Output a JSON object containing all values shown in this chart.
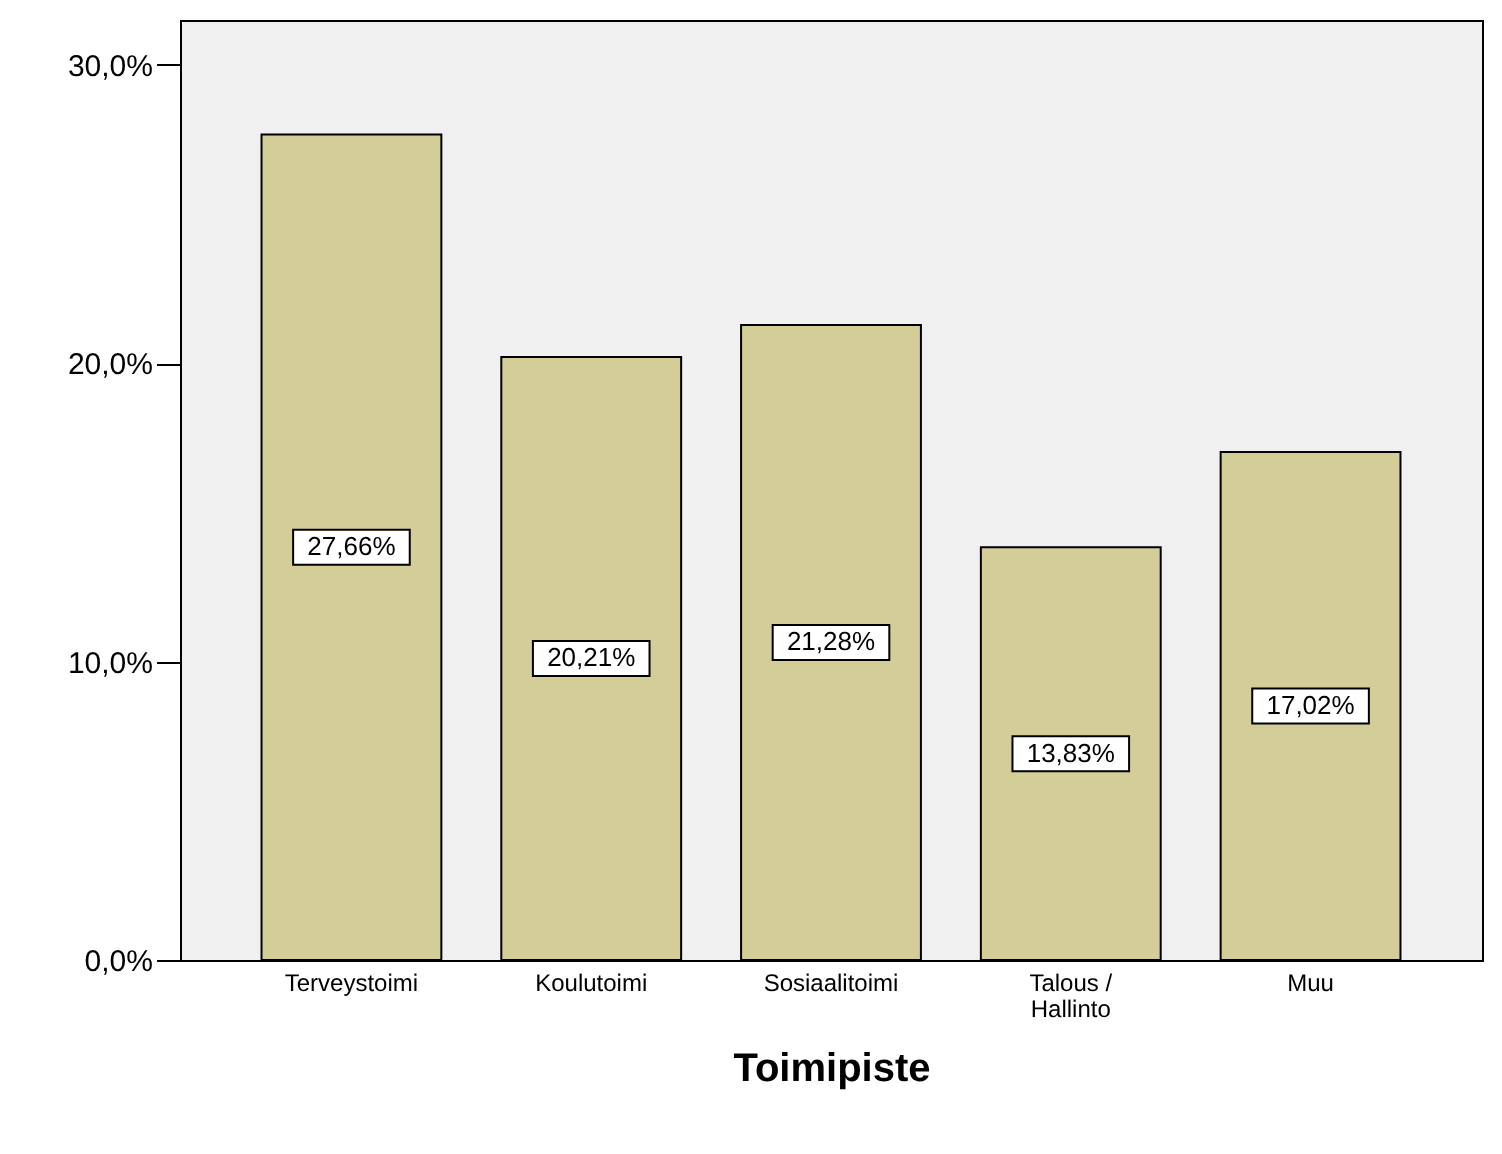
{
  "chart_data": {
    "type": "bar",
    "xlabel": "Toimipiste",
    "categories": [
      "Terveystoimi",
      "Koulutoimi",
      "Sosiaalitoimi",
      "Talous /\nHallinto",
      "Muu"
    ],
    "values": [
      27.66,
      20.21,
      21.28,
      13.83,
      17.02
    ],
    "value_labels": [
      "27,66%",
      "20,21%",
      "21,28%",
      "13,83%",
      "17,02%"
    ],
    "color": "#d3ce97",
    "ylim": [
      0,
      31.5
    ],
    "yticks": [
      {
        "value": 0,
        "label": "0,0%"
      },
      {
        "value": 10,
        "label": "10,0%"
      },
      {
        "value": 20,
        "label": "20,0%"
      },
      {
        "value": 30,
        "label": "30,0%"
      }
    ],
    "grid": false
  }
}
